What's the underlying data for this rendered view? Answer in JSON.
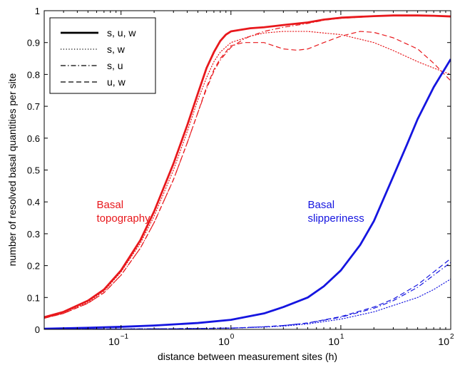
{
  "chart_data": {
    "type": "line",
    "xlabel": "distance between measurement sites (h)",
    "ylabel": "number of resolved basal quantities per site",
    "xscale": "log",
    "xlim": [
      0.02,
      100
    ],
    "ylim": [
      0,
      1
    ],
    "x_ticks": [
      {
        "base": "10",
        "exp": "−1",
        "value": 0.1
      },
      {
        "base": "10",
        "exp": "0",
        "value": 1
      },
      {
        "base": "10",
        "exp": "1",
        "value": 10
      },
      {
        "base": "10",
        "exp": "2",
        "value": 100
      }
    ],
    "y_ticks": [
      "0",
      "0.1",
      "0.2",
      "0.3",
      "0.4",
      "0.5",
      "0.6",
      "0.7",
      "0.8",
      "0.9",
      "1"
    ],
    "legend": {
      "placement": "top-left",
      "entries": [
        {
          "label": "s, u, w",
          "style": "solid"
        },
        {
          "label": "s, w",
          "style": "dotted"
        },
        {
          "label": "s, u",
          "style": "dashdot"
        },
        {
          "label": "u, w",
          "style": "dashed"
        }
      ]
    },
    "annotations": [
      {
        "lines": [
          "Basal",
          "topography"
        ],
        "color": "#e8181c",
        "x": 0.06,
        "y": 0.38
      },
      {
        "lines": [
          "Basal",
          "slipperiness"
        ],
        "color": "#1515e0",
        "x": 5.0,
        "y": 0.38
      }
    ],
    "colors": {
      "topography": "#e8181c",
      "slipperiness": "#1515e0"
    },
    "series": [
      {
        "group": "topography",
        "style": "solid",
        "width": "thick",
        "points": [
          [
            0.02,
            0.038
          ],
          [
            0.03,
            0.055
          ],
          [
            0.05,
            0.09
          ],
          [
            0.07,
            0.125
          ],
          [
            0.1,
            0.185
          ],
          [
            0.15,
            0.28
          ],
          [
            0.2,
            0.37
          ],
          [
            0.3,
            0.52
          ],
          [
            0.4,
            0.64
          ],
          [
            0.5,
            0.74
          ],
          [
            0.6,
            0.82
          ],
          [
            0.7,
            0.87
          ],
          [
            0.8,
            0.905
          ],
          [
            0.9,
            0.925
          ],
          [
            1.0,
            0.935
          ],
          [
            1.5,
            0.945
          ],
          [
            2,
            0.948
          ],
          [
            3,
            0.955
          ],
          [
            5,
            0.963
          ],
          [
            7,
            0.972
          ],
          [
            10,
            0.978
          ],
          [
            20,
            0.983
          ],
          [
            30,
            0.985
          ],
          [
            50,
            0.985
          ],
          [
            70,
            0.984
          ],
          [
            100,
            0.982
          ]
        ]
      },
      {
        "group": "topography",
        "style": "dotted",
        "width": "thin",
        "points": [
          [
            0.02,
            0.035
          ],
          [
            0.03,
            0.05
          ],
          [
            0.05,
            0.085
          ],
          [
            0.07,
            0.12
          ],
          [
            0.1,
            0.18
          ],
          [
            0.15,
            0.27
          ],
          [
            0.2,
            0.355
          ],
          [
            0.3,
            0.5
          ],
          [
            0.4,
            0.62
          ],
          [
            0.5,
            0.72
          ],
          [
            0.6,
            0.79
          ],
          [
            0.7,
            0.84
          ],
          [
            0.8,
            0.87
          ],
          [
            1.0,
            0.9
          ],
          [
            1.5,
            0.92
          ],
          [
            2,
            0.93
          ],
          [
            3,
            0.935
          ],
          [
            5,
            0.935
          ],
          [
            7,
            0.93
          ],
          [
            10,
            0.925
          ],
          [
            20,
            0.9
          ],
          [
            30,
            0.875
          ],
          [
            50,
            0.84
          ],
          [
            70,
            0.82
          ],
          [
            100,
            0.8
          ]
        ]
      },
      {
        "group": "topography",
        "style": "dashdot",
        "width": "thin",
        "points": [
          [
            0.02,
            0.035
          ],
          [
            0.03,
            0.05
          ],
          [
            0.05,
            0.082
          ],
          [
            0.07,
            0.115
          ],
          [
            0.1,
            0.17
          ],
          [
            0.15,
            0.255
          ],
          [
            0.2,
            0.335
          ],
          [
            0.3,
            0.47
          ],
          [
            0.4,
            0.585
          ],
          [
            0.5,
            0.68
          ],
          [
            0.6,
            0.755
          ],
          [
            0.7,
            0.81
          ],
          [
            0.8,
            0.845
          ],
          [
            1.0,
            0.885
          ],
          [
            1.3,
            0.91
          ],
          [
            1.5,
            0.92
          ],
          [
            2,
            0.935
          ],
          [
            3,
            0.948
          ],
          [
            5,
            0.96
          ],
          [
            7,
            0.97
          ],
          [
            10,
            0.976
          ],
          [
            20,
            0.982
          ],
          [
            30,
            0.984
          ],
          [
            50,
            0.985
          ],
          [
            70,
            0.984
          ],
          [
            100,
            0.982
          ]
        ]
      },
      {
        "group": "topography",
        "style": "dashed",
        "width": "thin",
        "points": [
          [
            0.02,
            0.035
          ],
          [
            0.03,
            0.05
          ],
          [
            0.05,
            0.082
          ],
          [
            0.07,
            0.115
          ],
          [
            0.1,
            0.17
          ],
          [
            0.15,
            0.255
          ],
          [
            0.2,
            0.335
          ],
          [
            0.3,
            0.47
          ],
          [
            0.4,
            0.585
          ],
          [
            0.5,
            0.68
          ],
          [
            0.6,
            0.76
          ],
          [
            0.7,
            0.815
          ],
          [
            0.8,
            0.85
          ],
          [
            1.0,
            0.89
          ],
          [
            1.3,
            0.9
          ],
          [
            2,
            0.9
          ],
          [
            3,
            0.88
          ],
          [
            4,
            0.876
          ],
          [
            5,
            0.88
          ],
          [
            7,
            0.9
          ],
          [
            10,
            0.92
          ],
          [
            15,
            0.935
          ],
          [
            20,
            0.932
          ],
          [
            30,
            0.915
          ],
          [
            50,
            0.88
          ],
          [
            70,
            0.835
          ],
          [
            100,
            0.78
          ]
        ]
      },
      {
        "group": "slipperiness",
        "style": "solid",
        "width": "thick",
        "points": [
          [
            0.02,
            0.002
          ],
          [
            0.05,
            0.005
          ],
          [
            0.1,
            0.008
          ],
          [
            0.2,
            0.012
          ],
          [
            0.5,
            0.02
          ],
          [
            1,
            0.03
          ],
          [
            2,
            0.05
          ],
          [
            3,
            0.07
          ],
          [
            5,
            0.1
          ],
          [
            7,
            0.135
          ],
          [
            10,
            0.185
          ],
          [
            15,
            0.265
          ],
          [
            20,
            0.34
          ],
          [
            30,
            0.48
          ],
          [
            40,
            0.58
          ],
          [
            50,
            0.66
          ],
          [
            70,
            0.76
          ],
          [
            100,
            0.848
          ]
        ]
      },
      {
        "group": "slipperiness",
        "style": "dashed",
        "width": "thin",
        "points": [
          [
            0.02,
            0.0
          ],
          [
            0.3,
            0.002
          ],
          [
            1,
            0.004
          ],
          [
            2,
            0.008
          ],
          [
            3,
            0.012
          ],
          [
            5,
            0.02
          ],
          [
            10,
            0.04
          ],
          [
            20,
            0.07
          ],
          [
            30,
            0.095
          ],
          [
            50,
            0.14
          ],
          [
            70,
            0.18
          ],
          [
            100,
            0.222
          ]
        ]
      },
      {
        "group": "slipperiness",
        "style": "dashdot",
        "width": "thin",
        "points": [
          [
            0.02,
            0.0
          ],
          [
            0.3,
            0.002
          ],
          [
            1,
            0.004
          ],
          [
            2,
            0.008
          ],
          [
            3,
            0.012
          ],
          [
            5,
            0.02
          ],
          [
            10,
            0.038
          ],
          [
            20,
            0.066
          ],
          [
            30,
            0.09
          ],
          [
            50,
            0.132
          ],
          [
            70,
            0.17
          ],
          [
            100,
            0.21
          ]
        ]
      },
      {
        "group": "slipperiness",
        "style": "dotted",
        "width": "thin",
        "points": [
          [
            0.02,
            0.0
          ],
          [
            0.3,
            0.002
          ],
          [
            1,
            0.004
          ],
          [
            2,
            0.007
          ],
          [
            3,
            0.01
          ],
          [
            5,
            0.017
          ],
          [
            10,
            0.032
          ],
          [
            20,
            0.055
          ],
          [
            30,
            0.075
          ],
          [
            50,
            0.1
          ],
          [
            70,
            0.125
          ],
          [
            100,
            0.158
          ]
        ]
      }
    ]
  }
}
